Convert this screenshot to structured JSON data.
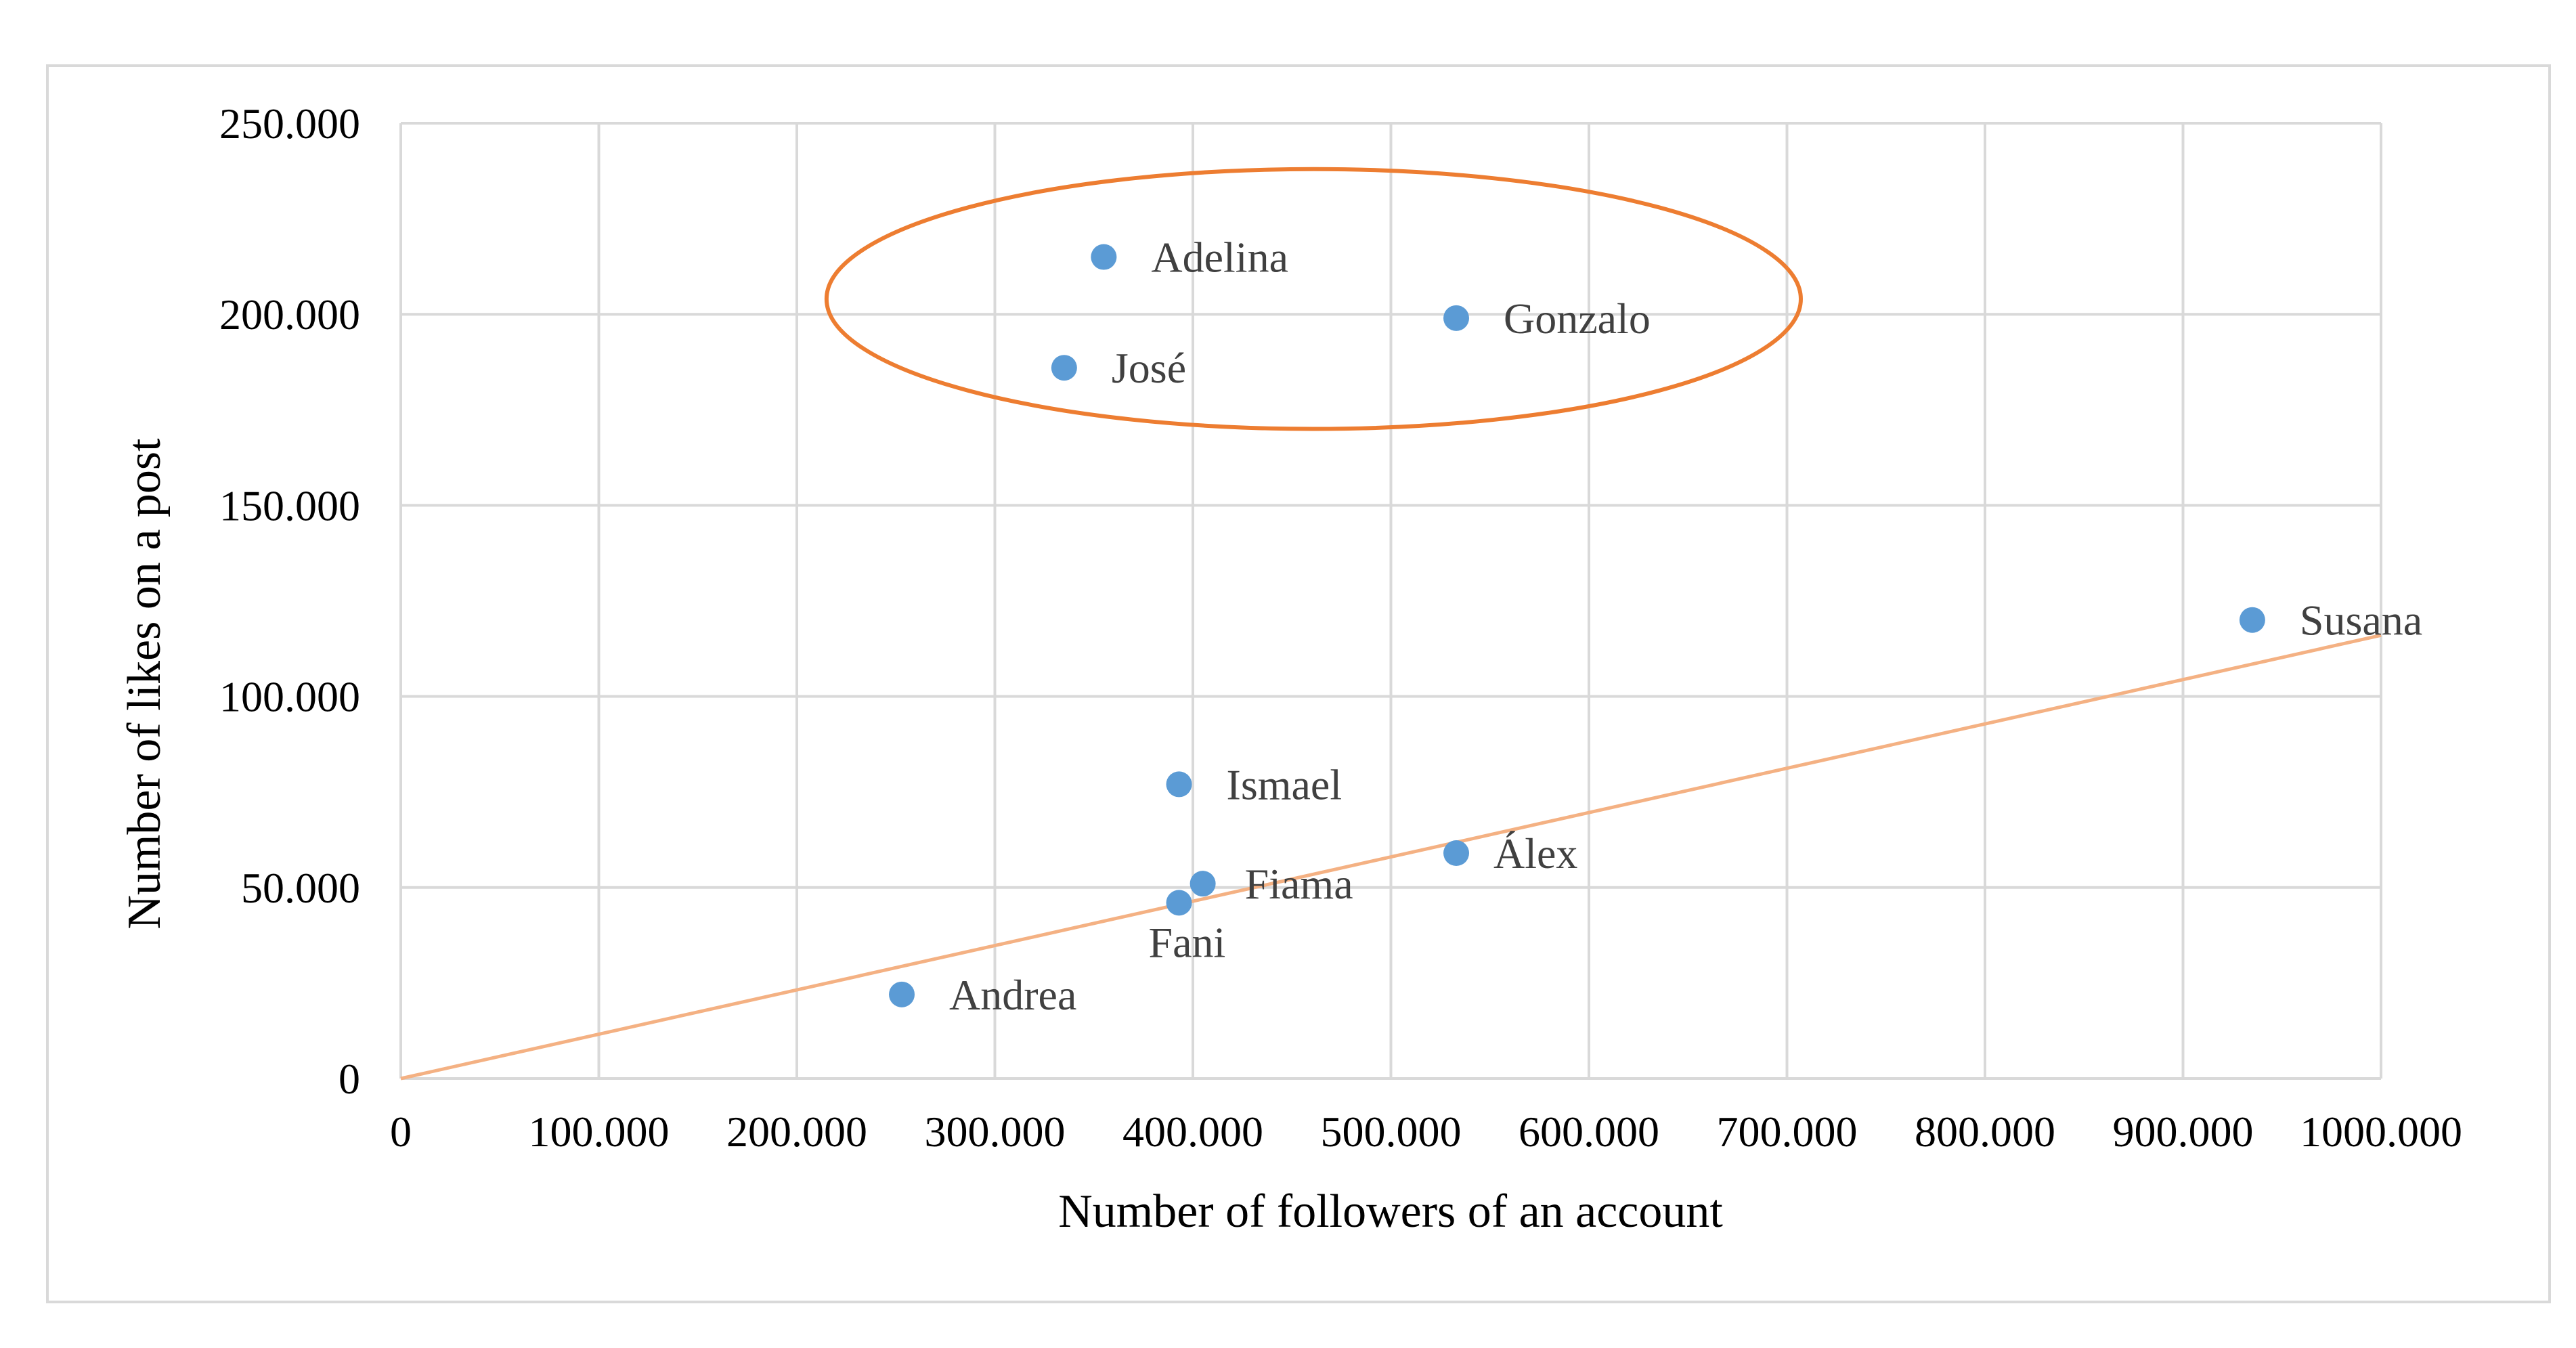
{
  "chart_data": {
    "type": "scatter",
    "xlabel": "Number of followers of an account",
    "ylabel": "Number of likes on a post",
    "xlim": [
      0,
      1000000
    ],
    "ylim": [
      0,
      250000
    ],
    "x_ticks": [
      0,
      100000,
      200000,
      300000,
      400000,
      500000,
      600000,
      700000,
      800000,
      900000,
      1000000
    ],
    "x_tick_labels": [
      "0",
      "100.000",
      "200.000",
      "300.000",
      "400.000",
      "500.000",
      "600.000",
      "700.000",
      "800.000",
      "900.000",
      "1000.000"
    ],
    "y_ticks": [
      0,
      50000,
      100000,
      150000,
      200000,
      250000
    ],
    "y_tick_labels": [
      "0",
      "50.000",
      "100.000",
      "150.000",
      "200.000",
      "250.000"
    ],
    "grid": true,
    "points": [
      {
        "label": "Adelina",
        "x": 355000,
        "y": 215000
      },
      {
        "label": "Gonzalo",
        "x": 533000,
        "y": 199000
      },
      {
        "label": "José",
        "x": 335000,
        "y": 186000
      },
      {
        "label": "Susana",
        "x": 935000,
        "y": 120000
      },
      {
        "label": "Ismael",
        "x": 393000,
        "y": 77000
      },
      {
        "label": "Álex",
        "x": 533000,
        "y": 59000
      },
      {
        "label": "Fiama",
        "x": 405000,
        "y": 51000
      },
      {
        "label": "Fani",
        "x": 393000,
        "y": 46000
      },
      {
        "label": "Andrea",
        "x": 253000,
        "y": 22000
      }
    ],
    "trendline": {
      "x": [
        0,
        1000000
      ],
      "y": [
        0,
        116000
      ]
    },
    "highlight_ellipse": {
      "x_range": [
        215000,
        707000
      ],
      "y_range": [
        170000,
        238000
      ],
      "members": [
        "Adelina",
        "Gonzalo",
        "José"
      ]
    },
    "colors": {
      "points": "#5b9bd5",
      "trendline": "#f4b183",
      "ellipse": "#ed7d31",
      "grid": "#d9d9d9"
    }
  }
}
